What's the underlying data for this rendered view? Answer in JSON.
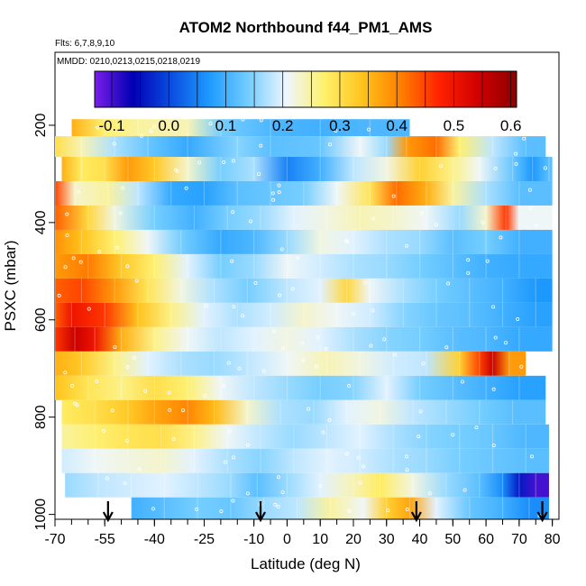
{
  "chart_data": {
    "type": "heatmap",
    "title": "ATOM2 Northbound f44_PM1_AMS",
    "flights_text": "Flts: 6,7,8,9,10",
    "dates_text": "MMDD: 0210,0213,0215,0218,0219",
    "xlabel": "Latitude (deg N)",
    "ylabel": "PSXC (mbar)",
    "xlim": [
      -70,
      82
    ],
    "ylim": [
      1010,
      50
    ],
    "x_ticks": [
      -70,
      -55,
      -40,
      -25,
      -10,
      0,
      10,
      20,
      30,
      40,
      50,
      60,
      70,
      80
    ],
    "x_tick_labels": [
      "-70",
      "-55",
      "-40",
      "-25",
      "-10",
      "0",
      "10",
      "20",
      "30",
      "40",
      "50",
      "60",
      "70",
      "80"
    ],
    "y_ticks": [
      200,
      400,
      600,
      800,
      1000
    ],
    "y_tick_labels": [
      "200",
      "400",
      "600",
      "800",
      "1000"
    ],
    "colorbar": {
      "min": -0.13,
      "max": 0.61,
      "ticks": [
        -0.1,
        0.0,
        0.1,
        0.2,
        0.3,
        0.4,
        0.5,
        0.6
      ],
      "tick_labels": [
        "-0.1",
        "0.0",
        "0.1",
        "0.2",
        "0.3",
        "0.4",
        "0.5",
        "0.6"
      ],
      "colors": [
        "#7a1ee8",
        "#0000b4",
        "#0a4ee0",
        "#1e9bff",
        "#73cdff",
        "#eef6ff",
        "#fff06a",
        "#ffc21a",
        "#ff7e00",
        "#ff2000",
        "#d00000",
        "#8c0000"
      ]
    },
    "arrows_latitude": [
      -54,
      -8,
      39,
      77
    ],
    "rows": [
      {
        "p": 205,
        "segments": [
          [
            -65,
            0.36
          ],
          [
            -55,
            0.27
          ],
          [
            -45,
            0.25
          ],
          [
            -30,
            0.24
          ],
          [
            -20,
            0.14
          ],
          [
            -5,
            0.11
          ],
          [
            10,
            0.1
          ],
          [
            25,
            0.11
          ],
          [
            37,
            null
          ]
        ]
      },
      {
        "p": 240,
        "segments": [
          [
            -70,
            0.3
          ],
          [
            -62,
            0.24
          ],
          [
            -52,
            0.17
          ],
          [
            -42,
            0.13
          ],
          [
            -30,
            0.09
          ],
          [
            -15,
            0.15
          ],
          [
            -5,
            0.12
          ],
          [
            10,
            0.13
          ],
          [
            22,
            0.21
          ],
          [
            30,
            0.16
          ],
          [
            36,
            0.38
          ],
          [
            45,
            0.42
          ],
          [
            52,
            0.27
          ],
          [
            62,
            0.18
          ],
          [
            72,
            0.12
          ],
          [
            78,
            null
          ]
        ]
      },
      {
        "p": 290,
        "segments": [
          [
            -68,
            0.36
          ],
          [
            -62,
            0.28
          ],
          [
            -55,
            0.3
          ],
          [
            -48,
            0.38
          ],
          [
            -40,
            0.33
          ],
          [
            -30,
            0.23
          ],
          [
            -20,
            0.14
          ],
          [
            -10,
            0.17
          ],
          [
            0,
            0.05
          ],
          [
            10,
            0.1
          ],
          [
            20,
            0.18
          ],
          [
            30,
            0.22
          ],
          [
            40,
            0.32
          ],
          [
            50,
            0.26
          ],
          [
            58,
            0.21
          ],
          [
            68,
            0.13
          ],
          [
            74,
            0.07
          ],
          [
            79,
            0.12
          ],
          [
            80,
            null
          ]
        ]
      },
      {
        "p": 340,
        "segments": [
          [
            -70,
            0.45
          ],
          [
            -64,
            0.23
          ],
          [
            -54,
            0.25
          ],
          [
            -45,
            0.18
          ],
          [
            -35,
            0.09
          ],
          [
            -25,
            0.08
          ],
          [
            -15,
            0.12
          ],
          [
            -5,
            0.13
          ],
          [
            5,
            0.14
          ],
          [
            15,
            0.21
          ],
          [
            25,
            0.29
          ],
          [
            33,
            0.42
          ],
          [
            42,
            0.36
          ],
          [
            50,
            0.25
          ],
          [
            60,
            0.17
          ],
          [
            70,
            0.12
          ],
          [
            80,
            null
          ]
        ]
      },
      {
        "p": 390,
        "segments": [
          [
            -70,
            0.43
          ],
          [
            -60,
            0.31
          ],
          [
            -52,
            0.22
          ],
          [
            -40,
            0.14
          ],
          [
            -28,
            0.1
          ],
          [
            -18,
            0.14
          ],
          [
            -8,
            0.16
          ],
          [
            2,
            0.2
          ],
          [
            12,
            0.22
          ],
          [
            22,
            0.24
          ],
          [
            32,
            0.23
          ],
          [
            42,
            0.21
          ],
          [
            52,
            0.16
          ],
          [
            60,
            0.23
          ],
          [
            66,
            0.46
          ],
          [
            70,
            0.21
          ],
          [
            80,
            null
          ]
        ]
      },
      {
        "p": 440,
        "segments": [
          [
            -70,
            0.39
          ],
          [
            -62,
            0.34
          ],
          [
            -52,
            0.27
          ],
          [
            -42,
            0.21
          ],
          [
            -32,
            0.14
          ],
          [
            -20,
            0.09
          ],
          [
            -10,
            0.11
          ],
          [
            0,
            0.16
          ],
          [
            10,
            0.22
          ],
          [
            20,
            0.2
          ],
          [
            30,
            0.17
          ],
          [
            40,
            0.16
          ],
          [
            50,
            0.12
          ],
          [
            60,
            0.14
          ],
          [
            70,
            0.1
          ],
          [
            80,
            null
          ]
        ]
      },
      {
        "p": 490,
        "segments": [
          [
            -70,
            0.38
          ],
          [
            -60,
            0.41
          ],
          [
            -50,
            0.33
          ],
          [
            -40,
            0.27
          ],
          [
            -30,
            0.2
          ],
          [
            -20,
            0.14
          ],
          [
            -10,
            0.16
          ],
          [
            0,
            0.21
          ],
          [
            10,
            0.19
          ],
          [
            20,
            0.17
          ],
          [
            30,
            0.16
          ],
          [
            40,
            0.14
          ],
          [
            50,
            0.12
          ],
          [
            60,
            0.1
          ],
          [
            70,
            0.09
          ],
          [
            80,
            null
          ]
        ]
      },
      {
        "p": 540,
        "segments": [
          [
            -70,
            0.43
          ],
          [
            -62,
            0.45
          ],
          [
            -52,
            0.38
          ],
          [
            -42,
            0.29
          ],
          [
            -32,
            0.22
          ],
          [
            -22,
            0.17
          ],
          [
            -12,
            0.14
          ],
          [
            0,
            0.18
          ],
          [
            10,
            0.2
          ],
          [
            18,
            0.31
          ],
          [
            25,
            0.21
          ],
          [
            35,
            0.17
          ],
          [
            45,
            0.14
          ],
          [
            55,
            0.12
          ],
          [
            65,
            0.1
          ],
          [
            75,
            0.07
          ],
          [
            80,
            null
          ]
        ]
      },
      {
        "p": 590,
        "segments": [
          [
            -70,
            0.43
          ],
          [
            -65,
            0.5
          ],
          [
            -55,
            0.46
          ],
          [
            -45,
            0.34
          ],
          [
            -35,
            0.26
          ],
          [
            -25,
            0.2
          ],
          [
            -15,
            0.17
          ],
          [
            -5,
            0.19
          ],
          [
            5,
            0.23
          ],
          [
            15,
            0.21
          ],
          [
            25,
            0.19
          ],
          [
            35,
            0.15
          ],
          [
            45,
            0.13
          ],
          [
            55,
            0.12
          ],
          [
            65,
            0.1
          ],
          [
            75,
            0.08
          ],
          [
            80,
            null
          ]
        ]
      },
      {
        "p": 640,
        "segments": [
          [
            -70,
            0.46
          ],
          [
            -64,
            0.55
          ],
          [
            -58,
            0.5
          ],
          [
            -50,
            0.36
          ],
          [
            -40,
            0.26
          ],
          [
            -30,
            0.21
          ],
          [
            -20,
            0.18
          ],
          [
            -10,
            0.2
          ],
          [
            0,
            0.22
          ],
          [
            10,
            0.2
          ],
          [
            20,
            0.17
          ],
          [
            30,
            0.15
          ],
          [
            40,
            0.14
          ],
          [
            50,
            0.12
          ],
          [
            60,
            0.11
          ],
          [
            70,
            0.09
          ],
          [
            80,
            null
          ]
        ]
      },
      {
        "p": 690,
        "segments": [
          [
            -70,
            0.36
          ],
          [
            -62,
            0.33
          ],
          [
            -52,
            0.26
          ],
          [
            -42,
            0.2
          ],
          [
            -32,
            0.17
          ],
          [
            -22,
            0.16
          ],
          [
            -12,
            0.18
          ],
          [
            0,
            0.21
          ],
          [
            12,
            0.24
          ],
          [
            22,
            0.22
          ],
          [
            32,
            0.19
          ],
          [
            42,
            0.18
          ],
          [
            52,
            0.32
          ],
          [
            58,
            0.45
          ],
          [
            62,
            0.55
          ],
          [
            67,
            0.38
          ],
          [
            72,
            null
          ]
        ]
      },
      {
        "p": 740,
        "segments": [
          [
            -70,
            0.34
          ],
          [
            -60,
            0.29
          ],
          [
            -50,
            0.26
          ],
          [
            -40,
            0.3
          ],
          [
            -30,
            0.27
          ],
          [
            -20,
            0.21
          ],
          [
            -10,
            0.18
          ],
          [
            0,
            0.16
          ],
          [
            10,
            0.14
          ],
          [
            20,
            0.15
          ],
          [
            30,
            0.2
          ],
          [
            40,
            0.14
          ],
          [
            50,
            0.12
          ],
          [
            60,
            0.1
          ],
          [
            70,
            0.08
          ],
          [
            78,
            null
          ]
        ]
      },
      {
        "p": 790,
        "segments": [
          [
            -68,
            0.28
          ],
          [
            -58,
            0.3
          ],
          [
            -48,
            0.33
          ],
          [
            -40,
            0.37
          ],
          [
            -30,
            0.4
          ],
          [
            -22,
            0.35
          ],
          [
            -12,
            0.23
          ],
          [
            -2,
            0.17
          ],
          [
            8,
            0.16
          ],
          [
            18,
            0.2
          ],
          [
            28,
            0.22
          ],
          [
            38,
            0.18
          ],
          [
            48,
            0.16
          ],
          [
            58,
            0.14
          ],
          [
            68,
            0.12
          ],
          [
            78,
            null
          ]
        ]
      },
      {
        "p": 840,
        "segments": [
          [
            -68,
            0.25
          ],
          [
            -58,
            0.27
          ],
          [
            -48,
            0.29
          ],
          [
            -38,
            0.3
          ],
          [
            -28,
            0.26
          ],
          [
            -18,
            0.21
          ],
          [
            -8,
            0.18
          ],
          [
            2,
            0.16
          ],
          [
            12,
            0.18
          ],
          [
            22,
            0.2
          ],
          [
            32,
            0.17
          ],
          [
            42,
            0.15
          ],
          [
            52,
            0.14
          ],
          [
            62,
            0.13
          ],
          [
            72,
            0.11
          ],
          [
            79,
            null
          ]
        ]
      },
      {
        "p": 890,
        "segments": [
          [
            -68,
            0.19
          ],
          [
            -58,
            0.21
          ],
          [
            -48,
            0.22
          ],
          [
            -38,
            0.23
          ],
          [
            -28,
            0.2
          ],
          [
            -18,
            0.17
          ],
          [
            -8,
            0.15
          ],
          [
            2,
            0.18
          ],
          [
            12,
            0.2
          ],
          [
            22,
            0.19
          ],
          [
            32,
            0.17
          ],
          [
            42,
            0.16
          ],
          [
            52,
            0.14
          ],
          [
            62,
            0.13
          ],
          [
            72,
            0.12
          ],
          [
            79,
            null
          ]
        ]
      },
      {
        "p": 940,
        "segments": [
          [
            -67,
            0.16
          ],
          [
            -57,
            0.18
          ],
          [
            -47,
            0.19
          ],
          [
            -37,
            0.2
          ],
          [
            -27,
            0.18
          ],
          [
            -17,
            0.16
          ],
          [
            -9,
            0.12
          ],
          [
            0,
            0.16
          ],
          [
            10,
            0.2
          ],
          [
            20,
            0.24
          ],
          [
            28,
            0.28
          ],
          [
            38,
            0.22
          ],
          [
            48,
            0.16
          ],
          [
            58,
            0.12
          ],
          [
            65,
            0.06
          ],
          [
            70,
            -0.04
          ],
          [
            75,
            -0.1
          ],
          [
            79,
            null
          ]
        ]
      },
      {
        "p": 990,
        "segments": [
          [
            -47,
            0.1
          ],
          [
            -37,
            0.12
          ],
          [
            -27,
            0.14
          ],
          [
            -17,
            0.13
          ],
          [
            -7,
            0.16
          ],
          [
            3,
            0.18
          ],
          [
            13,
            0.25
          ],
          [
            23,
            0.21
          ],
          [
            30,
            0.32
          ],
          [
            37,
            0.37
          ],
          [
            45,
            0.2
          ],
          [
            55,
            0.13
          ],
          [
            65,
            0.1
          ],
          [
            73,
            0.06
          ],
          [
            79,
            null
          ]
        ]
      }
    ]
  }
}
